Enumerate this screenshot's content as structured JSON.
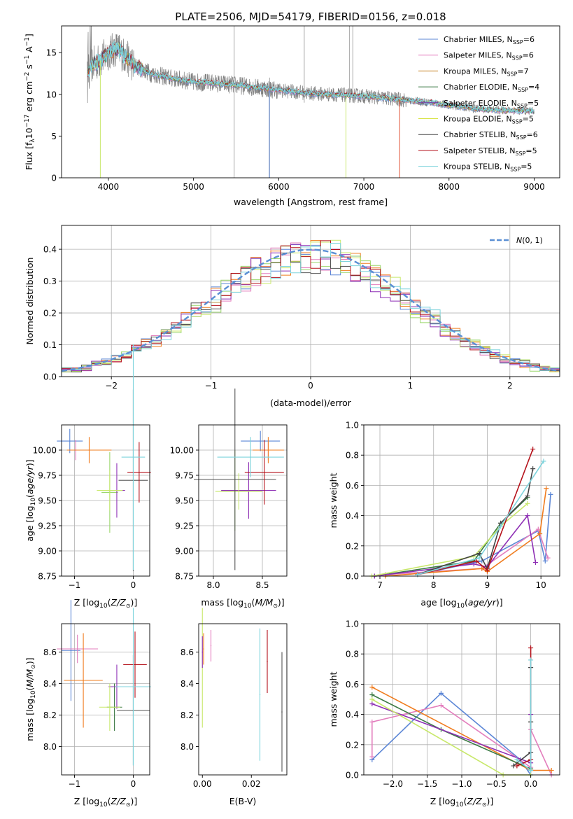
{
  "chart_data": [
    {
      "id": "spectrum",
      "type": "line",
      "title": "PLATE=2506, MJD=54179, FIBERID=0156, z=0.018",
      "xlabel": "wavelength [Angstrom, rest frame]",
      "ylabel": "Flux [f",
      "xlim": [
        3450,
        9300
      ],
      "ylim": [
        0,
        18.2
      ],
      "xticks": [
        4000,
        5000,
        6000,
        7000,
        8000,
        9000
      ],
      "yticks": [
        0,
        5,
        10,
        15
      ],
      "grid": false,
      "legend_position": "top-right",
      "continuum": {
        "x": [
          3750,
          3800,
          3900,
          4000,
          4100,
          4200,
          4300,
          4400,
          4500,
          4700,
          5000,
          5300,
          5600,
          6000,
          6400,
          6800,
          7000,
          7200,
          7400,
          7600,
          7800,
          8000,
          8300,
          8600,
          9000
        ],
        "y": [
          12.5,
          13.5,
          14.0,
          15.0,
          15.5,
          14.5,
          13.5,
          13.0,
          12.5,
          12.0,
          11.5,
          11.3,
          11.0,
          10.5,
          10.1,
          9.9,
          9.8,
          9.6,
          9.4,
          9.2,
          9.0,
          8.7,
          8.3,
          8.1,
          8.0
        ]
      },
      "legend": [
        {
          "name": "Chabrier MILES, N",
          "sub": "SSP",
          "val": "=6",
          "color": "#5b86d6"
        },
        {
          "name": "Salpeter MILES, N",
          "sub": "SSP",
          "val": "=6",
          "color": "#e37ebd"
        },
        {
          "name": "Kroupa MILES, N",
          "sub": "SSP",
          "val": "=7",
          "color": "#c6801f"
        },
        {
          "name": "Chabrier ELODIE, N",
          "sub": "SSP",
          "val": "=4",
          "color": "#3c7a45"
        },
        {
          "name": "Salpeter ELODIE, N",
          "sub": "SSP",
          "val": "=5",
          "color": "#7a2fa5"
        },
        {
          "name": "Kroupa ELODIE, N",
          "sub": "SSP",
          "val": "=5",
          "color": "#d6e23b"
        },
        {
          "name": "Chabrier STELIB, N",
          "sub": "SSP",
          "val": "=6",
          "color": "#444444"
        },
        {
          "name": "Salpeter STELIB, N",
          "sub": "SSP",
          "val": "=5",
          "color": "#b5121b"
        },
        {
          "name": "Kroupa STELIB, N",
          "sub": "SSP",
          "val": "=5",
          "color": "#7dd3dc"
        }
      ]
    },
    {
      "id": "residuals",
      "type": "line",
      "xlabel": "(data-model)/error",
      "ylabel": "Normed distribution",
      "xlim": [
        -2.5,
        2.5
      ],
      "ylim": [
        0,
        0.475
      ],
      "xticks": [
        -2,
        -1,
        0,
        1,
        2
      ],
      "yticks": [
        0.0,
        0.1,
        0.2,
        0.3,
        0.4
      ],
      "grid": true,
      "legend_position": "top-right",
      "legend": "N(0,1)",
      "bin_width": 0.1,
      "series_colors": [
        "#5b86d6",
        "#e37ebd",
        "#f07c1e",
        "#9ad66b",
        "#8e2fb5",
        "#c8e86a",
        "#555555",
        "#b5121b",
        "#7dd3dc"
      ]
    },
    {
      "id": "age-vs-Z",
      "type": "scatter",
      "xlabel": "Z [log",
      "ylabel": "age  [log",
      "xlim": [
        -1.22,
        0.28
      ],
      "ylim": [
        8.75,
        10.25
      ],
      "xticks": [
        -1,
        0
      ],
      "yticks": [
        8.75,
        9.0,
        9.25,
        9.5,
        9.75,
        10.0
      ],
      "grid": true,
      "points": [
        {
          "x": -1.08,
          "y": 10.09,
          "xerr": 0.22,
          "yerr": 0.12,
          "color": "#5b86d6"
        },
        {
          "x": -0.98,
          "y": 10.0,
          "xerr": 0.13,
          "yerr": 0.1,
          "color": "#e37ebd"
        },
        {
          "x": -0.75,
          "y": 10.0,
          "xerr": 0.38,
          "yerr": 0.13,
          "color": "#f07c1e"
        },
        {
          "x": -0.4,
          "y": 9.58,
          "xerr": 0.14,
          "yerr": 0.4,
          "color": "#9ad66b"
        },
        {
          "x": -0.28,
          "y": 9.6,
          "xerr": 0.14,
          "yerr": 0.27,
          "color": "#8e2fb5"
        },
        {
          "x": -0.4,
          "y": 9.6,
          "xerr": 0.22,
          "yerr": 0.2,
          "color": "#c8e86a"
        },
        {
          "x": 0.0,
          "y": 9.7,
          "xerr": 0.25,
          "yerr": 0.9,
          "color": "#555555"
        },
        {
          "x": 0.1,
          "y": 9.78,
          "xerr": 0.2,
          "yerr": 0.3,
          "color": "#b5121b"
        },
        {
          "x": 0.0,
          "y": 9.93,
          "xerr": 0.2,
          "yerr": 1.12,
          "color": "#7dd3dc"
        }
      ]
    },
    {
      "id": "age-vs-mass",
      "type": "scatter",
      "xlabel": "mass [log",
      "ylabel": "",
      "xlim": [
        7.85,
        8.75
      ],
      "ylim": [
        8.75,
        10.25
      ],
      "xticks": [
        8.0,
        8.5
      ],
      "yticks": [
        8.75,
        9.0,
        9.25,
        9.5,
        9.75,
        10.0
      ],
      "grid": true,
      "points": [
        {
          "x": 8.48,
          "y": 10.09,
          "xerr": 0.2,
          "yerr": 0.1,
          "color": "#5b86d6"
        },
        {
          "x": 8.56,
          "y": 10.0,
          "xerr": 0.14,
          "yerr": 0.1,
          "color": "#e37ebd"
        },
        {
          "x": 8.56,
          "y": 10.0,
          "xerr": 0.16,
          "yerr": 0.13,
          "color": "#f07c1e"
        },
        {
          "x": 8.22,
          "y": 9.6,
          "xerr": 0.14,
          "yerr": 0.4,
          "color": "#9ad66b"
        },
        {
          "x": 8.36,
          "y": 9.6,
          "xerr": 0.28,
          "yerr": 0.28,
          "color": "#8e2fb5"
        },
        {
          "x": 8.26,
          "y": 9.59,
          "xerr": 0.24,
          "yerr": 0.18,
          "color": "#c8e86a"
        },
        {
          "x": 8.22,
          "y": 9.71,
          "xerr": 0.42,
          "yerr": 0.9,
          "color": "#555555"
        },
        {
          "x": 8.52,
          "y": 9.78,
          "xerr": 0.2,
          "yerr": 0.32,
          "color": "#b5121b"
        },
        {
          "x": 8.38,
          "y": 9.93,
          "xerr": 0.34,
          "yerr": 0.2,
          "color": "#7dd3dc"
        }
      ]
    },
    {
      "id": "weight-vs-age",
      "type": "line",
      "xlabel": "age  [log",
      "ylabel": "mass weight",
      "xlim": [
        6.7,
        10.35
      ],
      "ylim": [
        0,
        1.0
      ],
      "xticks": [
        7,
        8,
        9,
        10
      ],
      "yticks": [
        0.0,
        0.2,
        0.4,
        0.6,
        0.8,
        1.0
      ],
      "grid": true,
      "series": [
        {
          "name": "Chabrier MILES",
          "color": "#5b86d6",
          "x": [
            7.7,
            8.9,
            9.95,
            10.08,
            10.18
          ],
          "y": [
            0.01,
            0.1,
            0.3,
            0.1,
            0.54
          ]
        },
        {
          "name": "Salpeter MILES",
          "color": "#e37ebd",
          "x": [
            7.1,
            8.9,
            9.95,
            10.13
          ],
          "y": [
            0.01,
            0.05,
            0.31,
            0.12
          ]
        },
        {
          "name": "Kroupa MILES",
          "color": "#f07c1e",
          "x": [
            7.1,
            8.9,
            9.0,
            9.98,
            10.1
          ],
          "y": [
            0.0,
            0.05,
            0.03,
            0.28,
            0.58
          ]
        },
        {
          "name": "Chabrier ELODIE",
          "color": "#3c7a45",
          "x": [
            6.9,
            8.75,
            9.25,
            9.75
          ],
          "y": [
            0.0,
            0.1,
            0.35,
            0.52
          ]
        },
        {
          "name": "Salpeter ELODIE",
          "color": "#8e2fb5",
          "x": [
            6.9,
            8.75,
            9.0,
            9.75,
            9.9
          ],
          "y": [
            0.0,
            0.08,
            0.06,
            0.4,
            0.09
          ]
        },
        {
          "name": "Kroupa ELODIE",
          "color": "#c8e86a",
          "x": [
            6.85,
            8.75,
            9.25,
            9.75
          ],
          "y": [
            0.0,
            0.13,
            0.33,
            0.48
          ]
        },
        {
          "name": "Chabrier STELIB",
          "color": "#444444",
          "x": [
            7.7,
            8.85,
            9.0,
            9.25,
            9.75,
            9.85
          ],
          "y": [
            0.01,
            0.15,
            0.05,
            0.35,
            0.53,
            0.71
          ]
        },
        {
          "name": "Salpeter STELIB",
          "color": "#b5121b",
          "x": [
            7.7,
            8.8,
            9.0,
            9.85
          ],
          "y": [
            0.01,
            0.1,
            0.04,
            0.84
          ]
        },
        {
          "name": "Kroupa STELIB",
          "color": "#7dd3dc",
          "x": [
            7.7,
            8.85,
            9.25,
            10.05
          ],
          "y": [
            0.01,
            0.12,
            0.33,
            0.76
          ]
        }
      ]
    },
    {
      "id": "mass-vs-Z",
      "type": "scatter",
      "xlabel": "Z [log",
      "ylabel": "mass [log",
      "xlim": [
        -1.22,
        0.28
      ],
      "ylim": [
        7.82,
        8.78
      ],
      "xticks": [
        -1,
        0
      ],
      "yticks": [
        8.0,
        8.2,
        8.4,
        8.6
      ],
      "grid": true,
      "points": [
        {
          "x": -1.06,
          "y": 8.61,
          "xerr": 0.16,
          "yerr": 0.32,
          "color": "#5b86d6"
        },
        {
          "x": -0.95,
          "y": 8.62,
          "xerr": 0.35,
          "yerr": 0.09,
          "color": "#e37ebd"
        },
        {
          "x": -0.85,
          "y": 8.42,
          "xerr": 0.33,
          "yerr": 0.3,
          "color": "#f07c1e"
        },
        {
          "x": -0.32,
          "y": 8.25,
          "xerr": 0.13,
          "yerr": 0.15,
          "color": "#3c7a45"
        },
        {
          "x": -0.28,
          "y": 8.38,
          "xerr": 0.14,
          "yerr": 0.14,
          "color": "#8e2fb5"
        },
        {
          "x": -0.4,
          "y": 8.25,
          "xerr": 0.18,
          "yerr": 0.15,
          "color": "#c8e86a"
        },
        {
          "x": 0.0,
          "y": 8.23,
          "xerr": 0.28,
          "yerr": 0.35,
          "color": "#555555"
        },
        {
          "x": 0.03,
          "y": 8.52,
          "xerr": 0.2,
          "yerr": 0.21,
          "color": "#b5121b"
        },
        {
          "x": 0.0,
          "y": 8.38,
          "xerr": 0.3,
          "yerr": 0.5,
          "color": "#7dd3dc"
        }
      ]
    },
    {
      "id": "mass-vs-EBV",
      "type": "scatter",
      "xlabel": "E(B-V)",
      "ylabel": "",
      "xlim": [
        -0.0015,
        0.0345
      ],
      "ylim": [
        7.82,
        8.78
      ],
      "xticks": [
        0.0,
        0.02
      ],
      "yticks": [
        8.0,
        8.2,
        8.4,
        8.6
      ],
      "grid": false,
      "points": [
        {
          "x": 0.0,
          "y": 8.5,
          "xerr": 0.0,
          "yerr": 0.38,
          "color": "#c8e86a"
        },
        {
          "x": 0.0005,
          "y": 8.62,
          "xerr": 0.0,
          "yerr": 0.1,
          "color": "#f07c1e"
        },
        {
          "x": 0.0,
          "y": 8.6,
          "xerr": 0.0,
          "yerr": 0.1,
          "color": "#8e2fb5"
        },
        {
          "x": 0.0035,
          "y": 8.64,
          "xerr": 0.0,
          "yerr": 0.1,
          "color": "#e37ebd"
        },
        {
          "x": 0.0235,
          "y": 8.33,
          "xerr": 0.0,
          "yerr": 0.42,
          "color": "#7dd3dc"
        },
        {
          "x": 0.0265,
          "y": 8.54,
          "xerr": 0.0,
          "yerr": 0.2,
          "color": "#b5121b"
        },
        {
          "x": 0.0325,
          "y": 8.22,
          "xerr": 0.0,
          "yerr": 0.38,
          "color": "#555555"
        }
      ]
    },
    {
      "id": "weight-vs-Z",
      "type": "line",
      "xlabel": "Z [log",
      "ylabel": "mass weight",
      "xlim": [
        -2.42,
        0.42
      ],
      "ylim": [
        0,
        1.0
      ],
      "xticks": [
        -2.0,
        -1.5,
        -1.0,
        -0.5,
        0.0
      ],
      "yticks": [
        0.0,
        0.2,
        0.4,
        0.6,
        0.8,
        1.0
      ],
      "grid": true,
      "series": [
        {
          "name": "Chabrier MILES",
          "color": "#5b86d6",
          "x": [
            -2.3,
            -1.3,
            -0.15,
            0.0
          ],
          "y": [
            0.1,
            0.54,
            0.1,
            0.0
          ]
        },
        {
          "name": "Salpeter MILES",
          "color": "#e37ebd",
          "x": [
            -2.3,
            -2.3,
            -1.3,
            0.0,
            0.0,
            0.3
          ],
          "y": [
            0.12,
            0.35,
            0.46,
            0.05,
            0.3,
            0.0
          ]
        },
        {
          "name": "Kroupa MILES",
          "color": "#f07c1e",
          "x": [
            -2.3,
            0.0,
            0.3
          ],
          "y": [
            0.58,
            0.03,
            0.03
          ]
        },
        {
          "name": "Chabrier ELODIE",
          "color": "#3c7a45",
          "x": [
            -2.3,
            -1.3,
            0.0,
            0.0
          ],
          "y": [
            0.53,
            0.3,
            0.04,
            0.35
          ]
        },
        {
          "name": "Salpeter ELODIE",
          "color": "#8e2fb5",
          "x": [
            -2.3,
            0.0,
            0.0
          ],
          "y": [
            0.47,
            0.08,
            0.4
          ]
        },
        {
          "name": "Kroupa ELODIE",
          "color": "#c8e86a",
          "x": [
            -2.3,
            -0.4,
            0.0
          ],
          "y": [
            0.5,
            0.0,
            0.0
          ]
        },
        {
          "name": "Chabrier STELIB",
          "color": "#444444",
          "x": [
            -0.25,
            0.0,
            0.0,
            0.0
          ],
          "y": [
            0.06,
            0.15,
            0.35,
            0.71
          ]
        },
        {
          "name": "Salpeter STELIB",
          "color": "#b5121b",
          "x": [
            -0.2,
            0.0,
            0.0
          ],
          "y": [
            0.06,
            0.1,
            0.84
          ]
        },
        {
          "name": "Kroupa STELIB",
          "color": "#7dd3dc",
          "x": [
            -0.2,
            0.0,
            0.0
          ],
          "y": [
            0.1,
            0.03,
            0.76
          ]
        }
      ]
    }
  ]
}
